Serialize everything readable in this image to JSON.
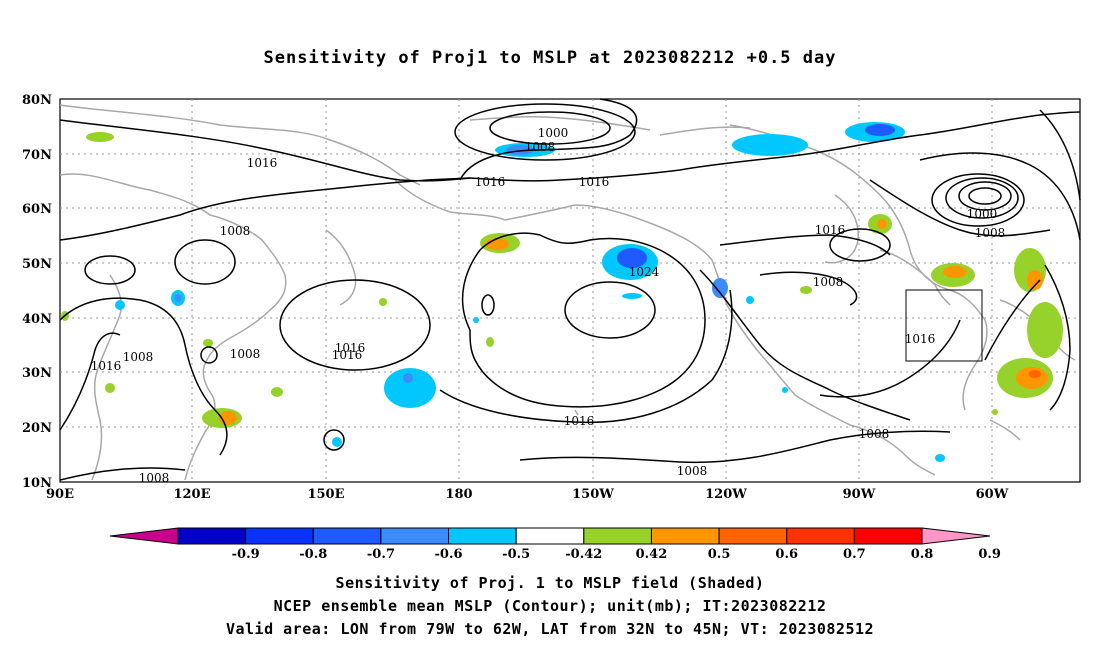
{
  "title": "Sensitivity of Proj1 to MSLP at 2023082212 +0.5 day",
  "lat_labels": [
    "80N",
    "70N",
    "60N",
    "50N",
    "40N",
    "30N",
    "20N",
    "10N"
  ],
  "lon_labels": [
    "90E",
    "120E",
    "150E",
    "180",
    "150W",
    "120W",
    "90W",
    "60W"
  ],
  "contour_labels": [
    "1000",
    "1008",
    "1016",
    "1016",
    "1016",
    "1008",
    "1024",
    "1016",
    "1016",
    "1016",
    "1016",
    "1008",
    "1016",
    "1008",
    "1008",
    "1008",
    "1016",
    "1000",
    "1008",
    "1016",
    "1008",
    "1008",
    "1008"
  ],
  "colorbar": {
    "labels": [
      "-0.9",
      "-0.8",
      "-0.7",
      "-0.6",
      "-0.5",
      "-0.42",
      "0.42",
      "0.5",
      "0.6",
      "0.7",
      "0.8",
      "0.9"
    ],
    "colors": [
      "#c8008c",
      "#0000c8",
      "#0a32ff",
      "#1e5aff",
      "#3c8cff",
      "#00c8ff",
      "#ffffff",
      "#96d22a",
      "#ff9600",
      "#ff6400",
      "#ff3200",
      "#ff0000",
      "#ff96c8"
    ]
  },
  "captions": [
    "Sensitivity of Proj. 1 to MSLP field (Shaded)",
    "NCEP ensemble mean MSLP (Contour); unit(mb); IT:2023082212",
    "Valid area: LON from 79W to 62W, LAT from 32N to 45N; VT: 2023082512"
  ]
}
